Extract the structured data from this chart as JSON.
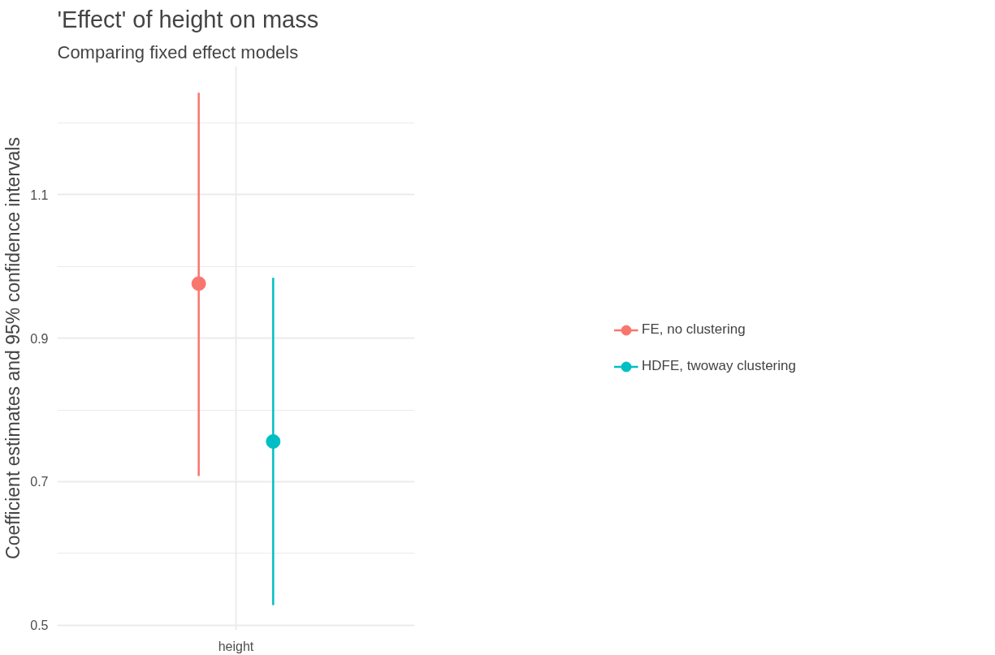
{
  "chart_data": {
    "type": "scatter",
    "title": "'Effect' of height on mass",
    "subtitle": "Comparing fixed effect models",
    "ylabel": "Coefficient estimates and 95% confidence intervals",
    "categories": [
      "height"
    ],
    "series": [
      {
        "name": "FE, no clustering",
        "color": "#f8766d",
        "values": [
          0.976
        ],
        "errors": [
          [
            0.708,
            1.242
          ]
        ]
      },
      {
        "name": "HDFE, twoway clustering",
        "color": "#00bfc4",
        "values": [
          0.756
        ],
        "errors": [
          [
            0.528,
            0.984
          ]
        ]
      }
    ],
    "ylim": [
      0.493,
      1.279
    ],
    "yticks": [
      0.5,
      {
        "value": 0.6,
        "label": null
      },
      0.7,
      {
        "value": 0.8,
        "label": null
      },
      0.9,
      {
        "value": 1.0,
        "label": null
      },
      1.1,
      {
        "value": 1.2,
        "label": null
      }
    ],
    "grid": true,
    "legend": "right",
    "marker": "circle"
  }
}
